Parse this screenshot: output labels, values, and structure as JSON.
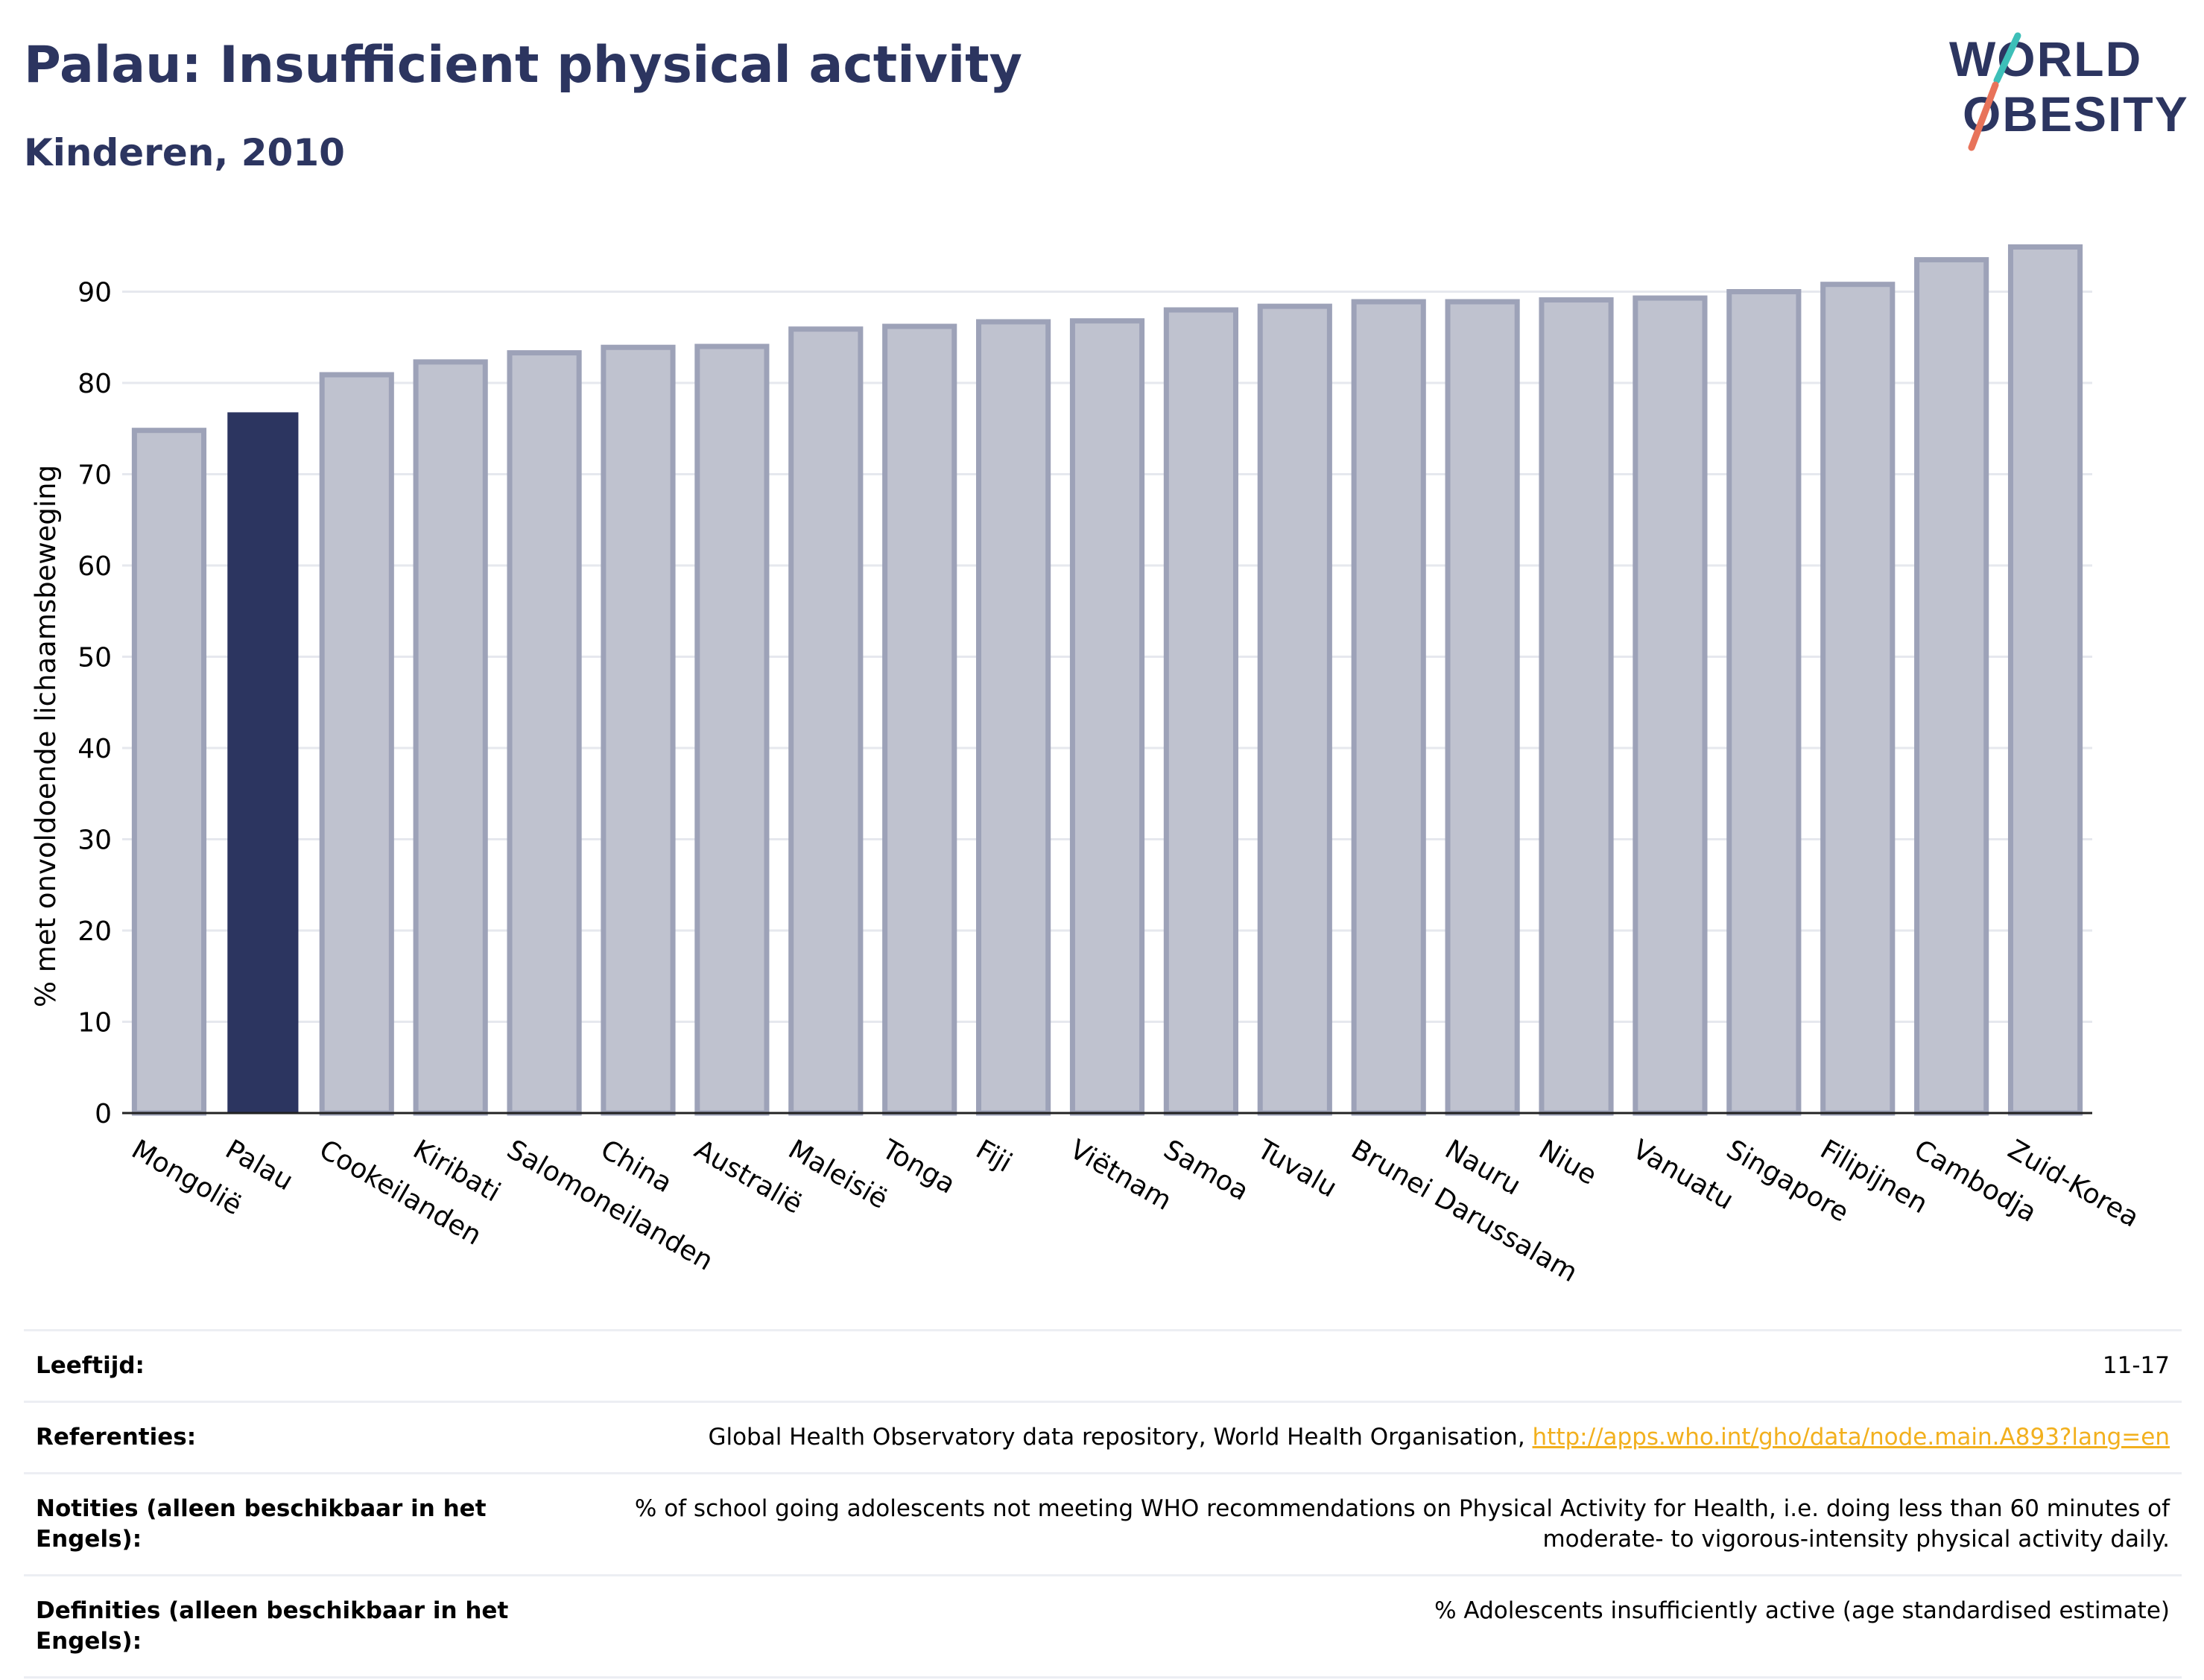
{
  "header": {
    "title": "Palau: Insufficient physical activity",
    "subtitle": "Kinderen, 2010"
  },
  "logo": {
    "line1": "WORLD",
    "line2": "OBESITY"
  },
  "chart_data": {
    "type": "bar",
    "ylabel": "% met onvoldoende lichaamsbeweging",
    "ylim": [
      0,
      97
    ],
    "yticks": [
      0,
      10,
      20,
      30,
      40,
      50,
      60,
      70,
      80,
      90
    ],
    "grid": true,
    "categories": [
      "Mongolië",
      "Palau",
      "Cookeilanden",
      "Kiribati",
      "Salomoneilanden",
      "China",
      "Australië",
      "Maleisië",
      "Tonga",
      "Fiji",
      "Viëtnam",
      "Samoa",
      "Tuvalu",
      "Brunei Darussalam",
      "Nauru",
      "Niue",
      "Vanuatu",
      "Singapore",
      "Filipijnen",
      "Cambodja",
      "Zuid-Korea"
    ],
    "values": [
      74.8,
      76.7,
      80.9,
      82.3,
      83.3,
      83.9,
      84.0,
      85.9,
      86.2,
      86.7,
      86.8,
      88.0,
      88.4,
      88.9,
      88.9,
      89.1,
      89.3,
      90.0,
      90.8,
      93.5,
      94.9
    ],
    "highlight": "Palau",
    "colors": {
      "highlight": "#2c3560",
      "bar_fill": "#bfc2cf",
      "bar_stroke": "#9da2b8",
      "grid": "#e6e8ee"
    }
  },
  "footer": {
    "rows": [
      {
        "label": "Leeftijd:",
        "value": "11-17"
      },
      {
        "label": "Referenties:",
        "value": "Global Health Observatory data repository, World Health Organisation, ",
        "link": "http://apps.who.int/gho/data/node.main.A893?lang=en"
      },
      {
        "label": "Notities (alleen beschikbaar in het Engels):",
        "value": "% of school going adolescents not meeting WHO recommendations on Physical Activity for Health, i.e. doing less than 60 minutes of moderate- to vigorous-intensity physical activity daily."
      },
      {
        "label": "Definities (alleen beschikbaar in het Engels):",
        "value": "% Adolescents insufficiently active (age standardised estimate)"
      }
    ]
  }
}
